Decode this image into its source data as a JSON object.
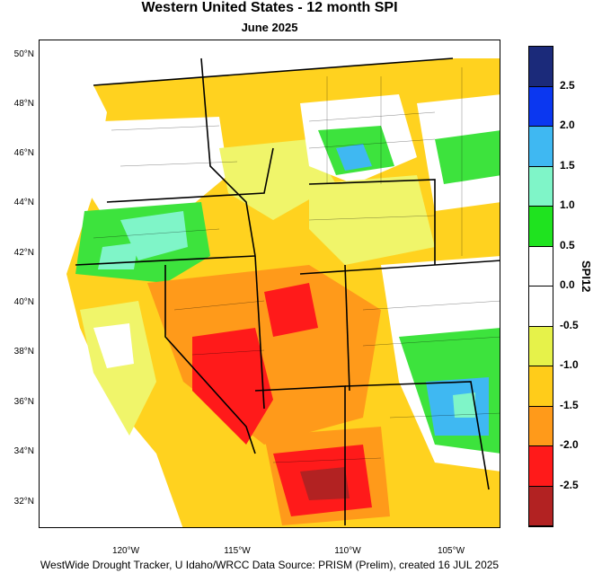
{
  "title": "Western United States - 12 month SPI",
  "subtitle": "June 2025",
  "footer": "WestWide Drought Tracker, U Idaho/WRCC Data Source: PRISM (Prelim), created 16 JUL 2025",
  "lat_labels": [
    "50°N",
    "48°N",
    "46°N",
    "44°N",
    "42°N",
    "40°N",
    "38°N",
    "36°N",
    "34°N",
    "32°N"
  ],
  "lon_labels": [
    "120°W",
    "115°W",
    "110°W",
    "105°W"
  ],
  "colorbar": {
    "title": "SPI12",
    "labels": [
      "2.5",
      "2.0",
      "1.5",
      "1.0",
      "0.5",
      "0.0",
      "-0.5",
      "-1.0",
      "-1.5",
      "-2.0",
      "-2.5"
    ],
    "colors": [
      "#1b2a7a",
      "#0b37f0",
      "#3fb8f2",
      "#7ff5c8",
      "#1fe31f",
      "#ffffff",
      "#ffffff",
      "#e6f24a",
      "#ffcc1a",
      "#ff9a1a",
      "#ff1a1a",
      "#b22222"
    ]
  }
}
